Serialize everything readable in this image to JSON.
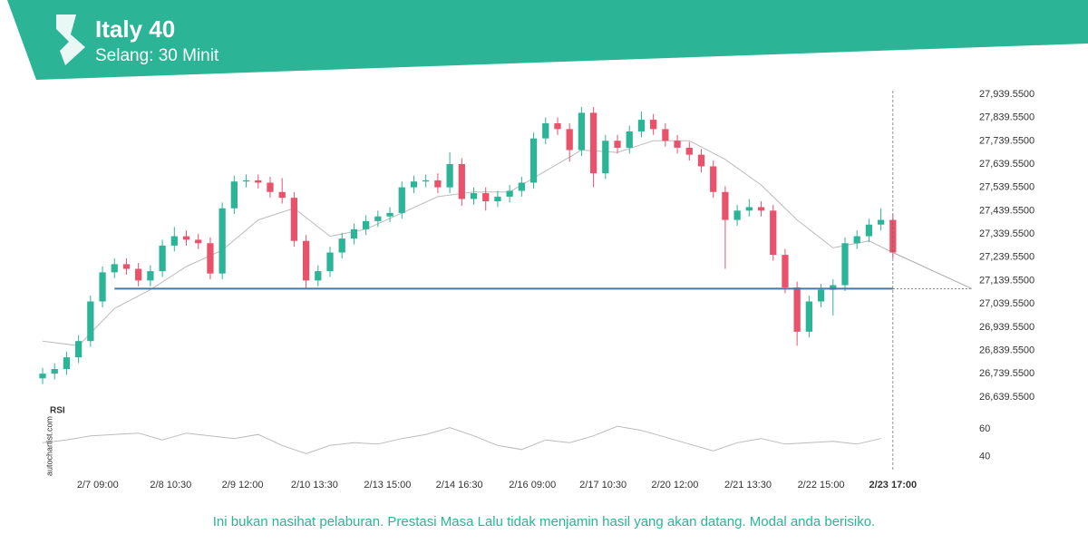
{
  "header": {
    "title": "Italy 40",
    "subtitle": "Selang: 30 Minit"
  },
  "chart_data": {
    "type": "candlestick",
    "xlim": [
      0,
      77.6
    ],
    "ylim": [
      26612,
      27955
    ],
    "yticks": [
      {
        "value": 27939.55,
        "label": "27,939.5500"
      },
      {
        "value": 27839.55,
        "label": "27,839.5500"
      },
      {
        "value": 27739.55,
        "label": "27,739.5500"
      },
      {
        "value": 27639.55,
        "label": "27,639.5500"
      },
      {
        "value": 27539.55,
        "label": "27,539.5500"
      },
      {
        "value": 27439.55,
        "label": "27,439.5500"
      },
      {
        "value": 27339.55,
        "label": "27,339.5500"
      },
      {
        "value": 27239.55,
        "label": "27,239.5500"
      },
      {
        "value": 27139.55,
        "label": "27,139.5500"
      },
      {
        "value": 27039.55,
        "label": "27,039.5500"
      },
      {
        "value": 26939.55,
        "label": "26,939.5500"
      },
      {
        "value": 26839.55,
        "label": "26,839.5500"
      },
      {
        "value": 26739.55,
        "label": "26,739.5500"
      },
      {
        "value": 26639.55,
        "label": "26,639.5500"
      }
    ],
    "xticks": [
      {
        "value": 4.6,
        "label": "2/7 09:00"
      },
      {
        "value": 10.7,
        "label": "2/8 10:30"
      },
      {
        "value": 16.7,
        "label": "2/9 12:00"
      },
      {
        "value": 22.7,
        "label": "2/10 13:30"
      },
      {
        "value": 28.8,
        "label": "2/13 15:00"
      },
      {
        "value": 34.8,
        "label": "2/14 16:30"
      },
      {
        "value": 40.9,
        "label": "2/16 09:00"
      },
      {
        "value": 46.8,
        "label": "2/17 10:30"
      },
      {
        "value": 52.8,
        "label": "2/20 12:00"
      },
      {
        "value": 58.9,
        "label": "2/21 13:30"
      },
      {
        "value": 65,
        "label": "2/22 15:00"
      },
      {
        "value": 71,
        "label": "2/23 17:00"
      }
    ],
    "highlight_last_xtick": true,
    "up_color": "#2bb596",
    "down_color": "#e8536b",
    "open": [
      26720,
      26740,
      26760,
      26810,
      26880,
      27050,
      27175,
      27210,
      27190,
      27140,
      27180,
      27290,
      27330,
      27315,
      27300,
      27170,
      27450,
      27565,
      27570,
      27560,
      27520,
      27495,
      27310,
      27140,
      27180,
      27260,
      27320,
      27360,
      27395,
      27415,
      27430,
      27540,
      27565,
      27570,
      27540,
      27640,
      27490,
      27515,
      27480,
      27500,
      27525,
      27560,
      27750,
      27815,
      27790,
      27700,
      27860,
      27600,
      27740,
      27710,
      27780,
      27830,
      27790,
      27740,
      27710,
      27680,
      27630,
      27520,
      27400,
      27440,
      27455,
      27440,
      27250,
      27110,
      26920,
      27050,
      27100,
      27120,
      27300,
      27330,
      27380,
      27400
    ],
    "high": [
      26765,
      26785,
      26835,
      26905,
      27075,
      27200,
      27235,
      27235,
      27215,
      27205,
      27315,
      27370,
      27355,
      27340,
      27325,
      27475,
      27590,
      27595,
      27595,
      27585,
      27580,
      27520,
      27335,
      27205,
      27285,
      27345,
      27385,
      27420,
      27440,
      27455,
      27565,
      27590,
      27595,
      27600,
      27690,
      27665,
      27540,
      27540,
      27525,
      27550,
      27585,
      27775,
      27840,
      27840,
      27815,
      27885,
      27885,
      27765,
      27765,
      27805,
      27865,
      27855,
      27815,
      27765,
      27735,
      27705,
      27655,
      27545,
      27465,
      27490,
      27480,
      27465,
      27275,
      27135,
      27075,
      27125,
      27145,
      27325,
      27355,
      27405,
      27450,
      27425
    ],
    "low": [
      26695,
      26715,
      26735,
      26785,
      26855,
      27025,
      27150,
      27165,
      27115,
      27115,
      27155,
      27265,
      27290,
      27275,
      27145,
      27145,
      27425,
      27540,
      27535,
      27495,
      27470,
      27285,
      27105,
      27115,
      27155,
      27235,
      27295,
      27335,
      27370,
      27390,
      27405,
      27515,
      27540,
      27515,
      27515,
      27460,
      27465,
      27440,
      27455,
      27475,
      27500,
      27535,
      27725,
      27765,
      27650,
      27675,
      27540,
      27575,
      27685,
      27685,
      27755,
      27765,
      27715,
      27685,
      27655,
      27605,
      27495,
      27190,
      27375,
      27415,
      27415,
      27225,
      27085,
      26860,
      26895,
      27025,
      26990,
      27095,
      27275,
      27305,
      27355,
      27235
    ],
    "close": [
      26740,
      26760,
      26810,
      26880,
      27050,
      27175,
      27210,
      27190,
      27140,
      27180,
      27290,
      27330,
      27315,
      27300,
      27170,
      27450,
      27565,
      27570,
      27560,
      27520,
      27495,
      27310,
      27140,
      27180,
      27260,
      27320,
      27360,
      27395,
      27415,
      27430,
      27540,
      27565,
      27570,
      27540,
      27640,
      27490,
      27515,
      27480,
      27500,
      27525,
      27560,
      27750,
      27815,
      27790,
      27700,
      27860,
      27600,
      27740,
      27710,
      27780,
      27830,
      27790,
      27740,
      27710,
      27680,
      27630,
      27520,
      27400,
      27440,
      27455,
      27440,
      27250,
      27110,
      26920,
      27050,
      27100,
      27120,
      27300,
      27330,
      27380,
      27400,
      27260
    ],
    "moving_average": {
      "color": "#bbbbbb",
      "x": [
        0,
        3,
        6,
        9,
        12,
        15,
        18,
        21,
        24,
        27,
        30,
        33,
        36,
        39,
        42,
        45,
        48,
        51,
        54,
        57,
        60,
        63,
        66,
        69,
        71
      ],
      "values": [
        26880,
        26860,
        27020,
        27100,
        27200,
        27270,
        27400,
        27450,
        27330,
        27360,
        27430,
        27500,
        27520,
        27520,
        27610,
        27700,
        27690,
        27740,
        27740,
        27660,
        27550,
        27400,
        27280,
        27310,
        27260
      ]
    },
    "level": {
      "value": 27105,
      "x": [
        6,
        71
      ],
      "color": "#4a78a0"
    },
    "forecast": {
      "x": [
        71,
        77.6
      ],
      "values": [
        27260,
        27105
      ]
    },
    "current_x": 71,
    "rsi": {
      "label": "RSI",
      "ylim": [
        29,
        72
      ],
      "yticks": [
        40,
        60
      ],
      "x": [
        0,
        2,
        4,
        6,
        8,
        10,
        12,
        14,
        16,
        18,
        20,
        22,
        24,
        26,
        28,
        30,
        32,
        34,
        36,
        38,
        40,
        42,
        44,
        46,
        48,
        50,
        52,
        54,
        56,
        58,
        60,
        62,
        64,
        66,
        68,
        70
      ],
      "values": [
        50,
        52,
        55,
        56,
        57,
        52,
        57,
        55,
        53,
        56,
        48,
        42,
        48,
        50,
        49,
        53,
        56,
        61,
        55,
        48,
        45,
        52,
        50,
        55,
        62,
        59,
        54,
        49,
        44,
        50,
        53,
        49,
        50,
        51,
        49,
        53
      ]
    }
  },
  "watermark": "autochartist.com",
  "disclaimer": "Ini bukan nasihat pelaburan. Prestasi Masa Lalu tidak menjamin hasil yang akan datang. Modal anda berisiko."
}
